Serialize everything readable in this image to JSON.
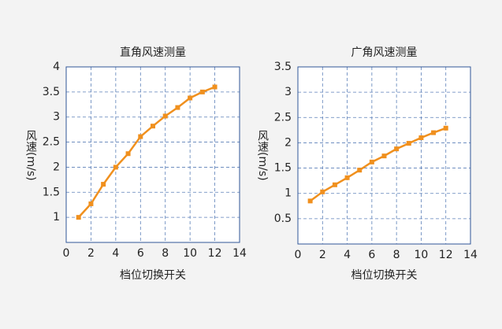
{
  "chart_data": [
    {
      "type": "line",
      "title": "直角风速测量",
      "x_label": "档位切换开关",
      "y_label": "风速(m/s)",
      "x": [
        1,
        2,
        3,
        4,
        5,
        6,
        7,
        8,
        9,
        10,
        11,
        12
      ],
      "series": [
        {
          "name": null,
          "color": "#f0901e",
          "values": [
            1.0,
            1.27,
            1.66,
            2.0,
            2.27,
            2.61,
            2.82,
            3.02,
            3.19,
            3.38,
            3.5,
            3.6
          ]
        }
      ],
      "xlim": [
        0,
        14
      ],
      "xticks": [
        0,
        2,
        4,
        6,
        8,
        10,
        12,
        14
      ],
      "ylim": [
        0.5,
        4
      ],
      "yticks": [
        1,
        1.5,
        2,
        2.5,
        3,
        3.5,
        4
      ],
      "grid": true
    },
    {
      "type": "line",
      "title": "广角风速测量",
      "x_label": "档位切换开关",
      "y_label": "风速(m/s)",
      "x": [
        1,
        2,
        3,
        4,
        5,
        6,
        7,
        8,
        9,
        10,
        11,
        12
      ],
      "series": [
        {
          "name": null,
          "color": "#f0901e",
          "values": [
            0.85,
            1.03,
            1.17,
            1.31,
            1.46,
            1.62,
            1.74,
            1.88,
            1.99,
            2.1,
            2.2,
            2.29
          ]
        }
      ],
      "xlim": [
        0,
        14
      ],
      "xticks": [
        0,
        2,
        4,
        6,
        8,
        10,
        12,
        14
      ],
      "ylim": [
        0,
        3.5
      ],
      "yticks": [
        0.5,
        1,
        1.5,
        2,
        2.5,
        3,
        3.5
      ],
      "grid": true
    }
  ]
}
